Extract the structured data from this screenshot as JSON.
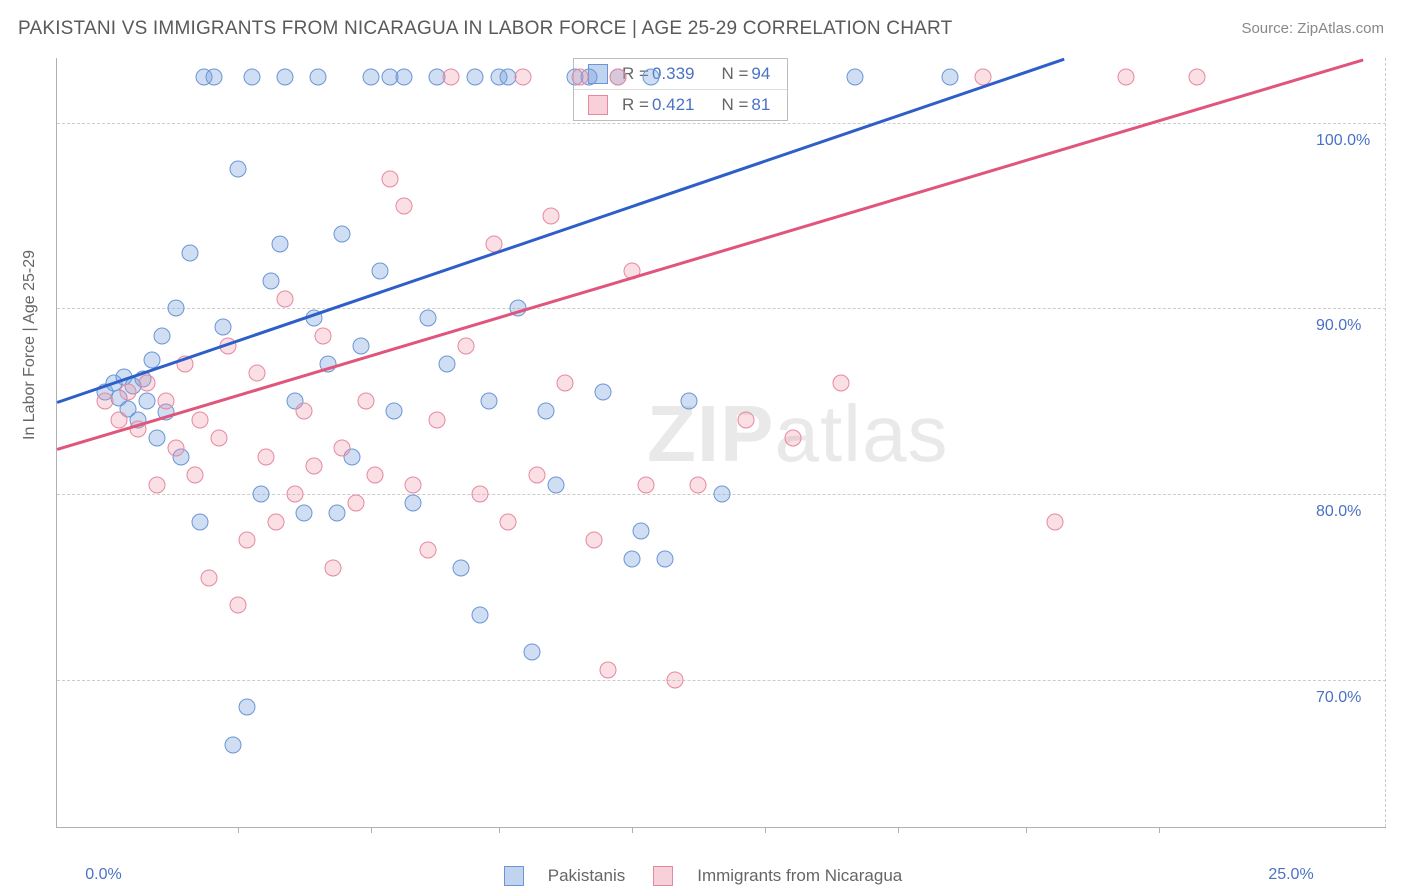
{
  "title": "PAKISTANI VS IMMIGRANTS FROM NICARAGUA IN LABOR FORCE | AGE 25-29 CORRELATION CHART",
  "source_label": "Source: ZipAtlas.com",
  "y_axis_title": "In Labor Force | Age 25-29",
  "watermark": {
    "part1": "ZIP",
    "part2": "atlas"
  },
  "chart": {
    "type": "scatter",
    "background_color": "#ffffff",
    "grid_color": "#cccccc",
    "axis_color": "#b0b0b0",
    "label_color": "#4a72c4",
    "xlim": [
      -1,
      27
    ],
    "ylim": [
      62,
      103.5
    ],
    "y_ticks": [
      70,
      80,
      90,
      100
    ],
    "y_tick_labels": [
      "70.0%",
      "80.0%",
      "90.0%",
      "100.0%"
    ],
    "x_visible_labels": [
      {
        "value": 0,
        "label": "0.0%"
      },
      {
        "value": 25,
        "label": "25.0%"
      }
    ],
    "x_ticks_minor": [
      2.8,
      5.6,
      8.3,
      11.1,
      13.9,
      16.7,
      19.4,
      22.2
    ],
    "series": [
      {
        "name": "pakistanis",
        "label": "Pakistanis",
        "fill_color": "rgba(118,160,220,0.35)",
        "stroke_color": "#6b96d6",
        "trend_color": "#2e5fc9",
        "marker_size": 17,
        "stats": {
          "R": "0.339",
          "N": "94"
        },
        "trend": {
          "x1": -1,
          "y1": 85.0,
          "x2": 20.2,
          "y2": 103.5
        },
        "points": [
          [
            0.0,
            85.5
          ],
          [
            0.2,
            86.0
          ],
          [
            0.3,
            85.2
          ],
          [
            0.4,
            86.3
          ],
          [
            0.5,
            84.6
          ],
          [
            0.6,
            85.8
          ],
          [
            0.7,
            84.0
          ],
          [
            0.8,
            86.2
          ],
          [
            0.9,
            85.0
          ],
          [
            1.0,
            87.2
          ],
          [
            1.1,
            83.0
          ],
          [
            1.2,
            88.5
          ],
          [
            1.3,
            84.4
          ],
          [
            1.5,
            90.0
          ],
          [
            1.6,
            82.0
          ],
          [
            1.8,
            93.0
          ],
          [
            2.0,
            78.5
          ],
          [
            2.1,
            102.5
          ],
          [
            2.3,
            102.5
          ],
          [
            2.5,
            89.0
          ],
          [
            2.7,
            66.5
          ],
          [
            2.8,
            97.5
          ],
          [
            3.0,
            68.5
          ],
          [
            3.1,
            102.5
          ],
          [
            3.3,
            80.0
          ],
          [
            3.5,
            91.5
          ],
          [
            3.7,
            93.5
          ],
          [
            3.8,
            102.5
          ],
          [
            4.0,
            85.0
          ],
          [
            4.2,
            79.0
          ],
          [
            4.4,
            89.5
          ],
          [
            4.5,
            102.5
          ],
          [
            4.7,
            87.0
          ],
          [
            4.9,
            79.0
          ],
          [
            5.0,
            94.0
          ],
          [
            5.2,
            82.0
          ],
          [
            5.4,
            88.0
          ],
          [
            5.6,
            102.5
          ],
          [
            5.8,
            92.0
          ],
          [
            6.0,
            102.5
          ],
          [
            6.1,
            84.5
          ],
          [
            6.3,
            102.5
          ],
          [
            6.5,
            79.5
          ],
          [
            6.8,
            89.5
          ],
          [
            7.0,
            102.5
          ],
          [
            7.2,
            87.0
          ],
          [
            7.5,
            76.0
          ],
          [
            7.8,
            102.5
          ],
          [
            7.9,
            73.5
          ],
          [
            8.1,
            85.0
          ],
          [
            8.3,
            102.5
          ],
          [
            8.5,
            102.5
          ],
          [
            8.7,
            90.0
          ],
          [
            9.0,
            71.5
          ],
          [
            9.3,
            84.5
          ],
          [
            9.5,
            80.5
          ],
          [
            9.9,
            102.5
          ],
          [
            10.2,
            102.5
          ],
          [
            10.5,
            85.5
          ],
          [
            10.8,
            102.5
          ],
          [
            11.1,
            76.5
          ],
          [
            11.3,
            78.0
          ],
          [
            11.5,
            102.5
          ],
          [
            11.8,
            76.5
          ],
          [
            12.3,
            85.0
          ],
          [
            13.0,
            80.0
          ],
          [
            15.8,
            102.5
          ],
          [
            17.8,
            102.5
          ]
        ]
      },
      {
        "name": "nicaragua",
        "label": "Immigrants from Nicaragua",
        "fill_color": "rgba(240,150,170,0.30)",
        "stroke_color": "#e688a0",
        "trend_color": "#e0557b",
        "marker_size": 17,
        "stats": {
          "R": "0.421",
          "N": "81"
        },
        "trend": {
          "x1": -1,
          "y1": 82.5,
          "x2": 26.5,
          "y2": 103.5
        },
        "points": [
          [
            0.0,
            85.0
          ],
          [
            0.3,
            84.0
          ],
          [
            0.5,
            85.5
          ],
          [
            0.7,
            83.5
          ],
          [
            0.9,
            86.0
          ],
          [
            1.1,
            80.5
          ],
          [
            1.3,
            85.0
          ],
          [
            1.5,
            82.5
          ],
          [
            1.7,
            87.0
          ],
          [
            1.9,
            81.0
          ],
          [
            2.0,
            84.0
          ],
          [
            2.2,
            75.5
          ],
          [
            2.4,
            83.0
          ],
          [
            2.6,
            88.0
          ],
          [
            2.8,
            74.0
          ],
          [
            3.0,
            77.5
          ],
          [
            3.2,
            86.5
          ],
          [
            3.4,
            82.0
          ],
          [
            3.6,
            78.5
          ],
          [
            3.8,
            90.5
          ],
          [
            4.0,
            80.0
          ],
          [
            4.2,
            84.5
          ],
          [
            4.4,
            81.5
          ],
          [
            4.6,
            88.5
          ],
          [
            4.8,
            76.0
          ],
          [
            5.0,
            82.5
          ],
          [
            5.3,
            79.5
          ],
          [
            5.5,
            85.0
          ],
          [
            5.7,
            81.0
          ],
          [
            6.0,
            97.0
          ],
          [
            6.3,
            95.5
          ],
          [
            6.5,
            80.5
          ],
          [
            6.8,
            77.0
          ],
          [
            7.0,
            84.0
          ],
          [
            7.3,
            102.5
          ],
          [
            7.6,
            88.0
          ],
          [
            7.9,
            80.0
          ],
          [
            8.2,
            93.5
          ],
          [
            8.5,
            78.5
          ],
          [
            8.8,
            102.5
          ],
          [
            9.1,
            81.0
          ],
          [
            9.4,
            95.0
          ],
          [
            9.7,
            86.0
          ],
          [
            10.0,
            102.5
          ],
          [
            10.3,
            77.5
          ],
          [
            10.6,
            70.5
          ],
          [
            10.8,
            102.5
          ],
          [
            11.1,
            92.0
          ],
          [
            11.4,
            80.5
          ],
          [
            12.0,
            70.0
          ],
          [
            12.5,
            80.5
          ],
          [
            13.5,
            84.0
          ],
          [
            14.5,
            83.0
          ],
          [
            15.5,
            86.0
          ],
          [
            18.5,
            102.5
          ],
          [
            20.0,
            78.5
          ],
          [
            21.5,
            102.5
          ],
          [
            23.0,
            102.5
          ]
        ]
      }
    ]
  },
  "stats_box": {
    "r_label": "R =",
    "n_label": "N ="
  }
}
